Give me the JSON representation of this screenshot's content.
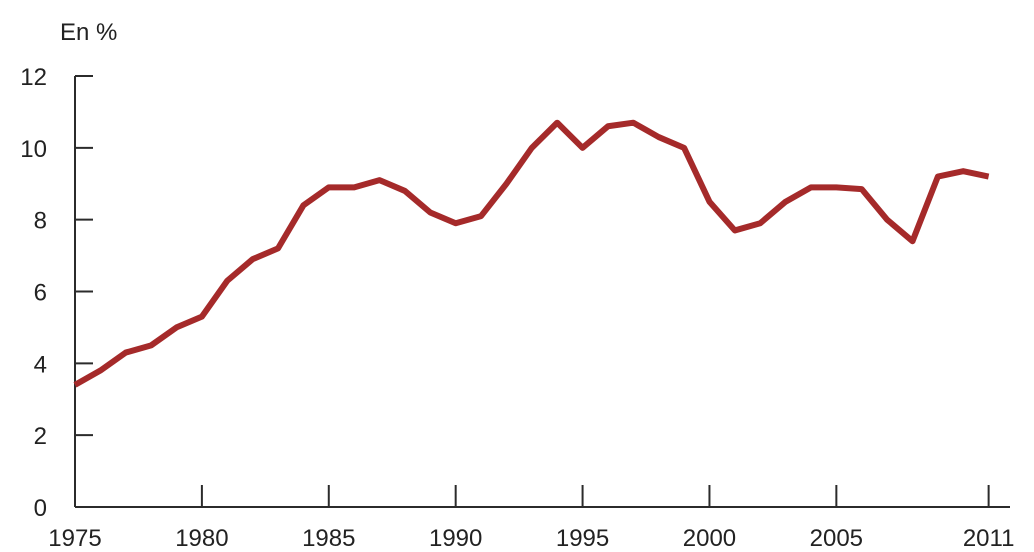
{
  "chart_data": {
    "type": "line",
    "title": "",
    "xlabel": "",
    "ylabel": "En %",
    "xlim": [
      1975,
      2012
    ],
    "ylim": [
      0,
      12
    ],
    "x_ticks": [
      1975,
      1980,
      1985,
      1990,
      1995,
      2000,
      2005,
      2011
    ],
    "y_ticks": [
      0,
      2,
      4,
      6,
      8,
      10,
      12
    ],
    "grid": false,
    "legend": "none",
    "series": [
      {
        "color": "#A52A2A",
        "x": [
          1975,
          1976,
          1977,
          1978,
          1979,
          1980,
          1981,
          1982,
          1983,
          1984,
          1985,
          1986,
          1987,
          1988,
          1989,
          1990,
          1991,
          1992,
          1993,
          1994,
          1995,
          1996,
          1997,
          1998,
          1999,
          2000,
          2001,
          2002,
          2003,
          2004,
          2005,
          2006,
          2007,
          2008,
          2009,
          2010,
          2011
        ],
        "values": [
          3.4,
          3.8,
          4.3,
          4.5,
          5.0,
          5.3,
          6.3,
          6.9,
          7.2,
          8.4,
          8.9,
          8.9,
          9.1,
          8.8,
          8.2,
          7.9,
          8.1,
          9.0,
          10.0,
          10.7,
          10.0,
          10.6,
          10.7,
          10.3,
          10.0,
          8.5,
          7.7,
          7.9,
          8.5,
          8.9,
          8.9,
          8.85,
          8.0,
          7.4,
          9.2,
          9.35,
          9.2
        ]
      }
    ]
  }
}
